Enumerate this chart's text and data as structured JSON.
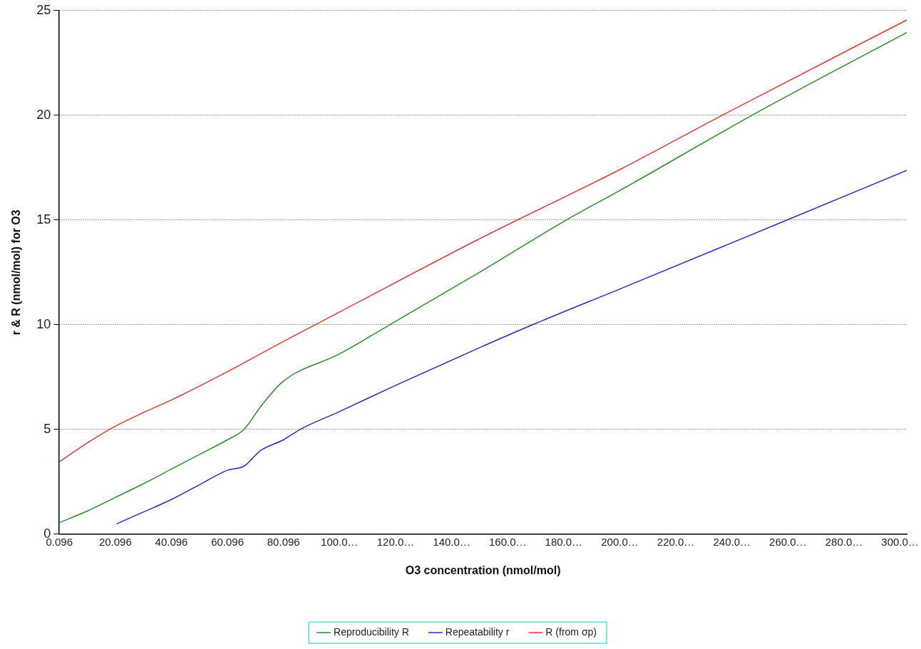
{
  "chart_data": {
    "type": "line",
    "xlabel": "O3 concentration (nmol/mol)",
    "ylabel": "r & R (nmol/mol) for O3",
    "series": [
      {
        "name": "Reproducibility R",
        "color": "#2e8b2e",
        "x": [
          0.096,
          10,
          20,
          30,
          40,
          50,
          60,
          66,
          72,
          80,
          100,
          118,
          150,
          181,
          200,
          250,
          302.5
        ],
        "values": [
          0.55,
          1.1,
          1.75,
          2.4,
          3.1,
          3.8,
          4.5,
          5.0,
          6.1,
          7.3,
          8.6,
          10,
          12.5,
          15,
          16.4,
          20.2,
          23.95
        ]
      },
      {
        "name": "Repeatability r",
        "color": "#2b2bbf",
        "x": [
          20.5,
          30,
          40,
          50,
          60,
          66,
          72,
          80,
          86,
          100,
          120,
          150,
          169,
          200,
          259.8,
          302.5
        ],
        "values": [
          0.49,
          1.05,
          1.65,
          2.35,
          3.05,
          3.25,
          4.0,
          4.5,
          5.0,
          5.85,
          7.1,
          8.9,
          10,
          11.7,
          15,
          17.37
        ]
      },
      {
        "name": "R (from σp)",
        "color": "#e03a3a",
        "x": [
          0.096,
          10,
          20,
          30,
          40,
          60,
          80,
          100,
          150,
          200,
          236.6,
          302.5
        ],
        "values": [
          3.45,
          4.35,
          5.15,
          5.8,
          6.4,
          7.75,
          9.2,
          10.6,
          14.1,
          17.4,
          20,
          24.55
        ]
      }
    ],
    "xlim": [
      0.096,
      302.5
    ],
    "xticks": [
      0.096,
      20.096,
      40.096,
      60.096,
      80.096,
      {
        "value": 100.096,
        "label": "100.0…"
      },
      {
        "value": 120.096,
        "label": "120.0…"
      },
      {
        "value": 140.096,
        "label": "140.0…"
      },
      {
        "value": 160.096,
        "label": "160.0…"
      },
      {
        "value": 180.096,
        "label": "180.0…"
      },
      {
        "value": 200.096,
        "label": "200.0…"
      },
      {
        "value": 220.096,
        "label": "220.0…"
      },
      {
        "value": 240.096,
        "label": "240.0…"
      },
      {
        "value": 260.096,
        "label": "260.0…"
      },
      {
        "value": 280.096,
        "label": "280.0…"
      },
      {
        "value": 300.096,
        "label": "300.0…"
      }
    ],
    "ylim": [
      0,
      25
    ],
    "yticks": [
      0,
      5,
      10,
      15,
      20,
      25
    ],
    "grid": "y",
    "legend": "bottom",
    "marker": "none",
    "line_style": "solid"
  }
}
